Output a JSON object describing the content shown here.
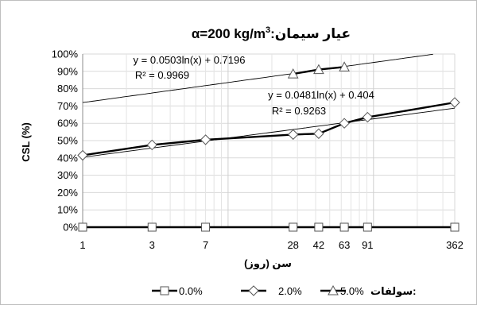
{
  "chart_data": {
    "type": "scatter",
    "title": {
      "prefix": "α=200 kg/m",
      "sup": "3",
      "suffix": ":عیار سیمان"
    },
    "xlabel": "سن (روز)",
    "ylabel": "CSL (%)",
    "x_scale": "log",
    "xlim": [
      1,
      362
    ],
    "ylim": [
      0,
      100
    ],
    "grid": true,
    "x_ticks": [
      1,
      3,
      7,
      28,
      42,
      63,
      91,
      362
    ],
    "x_tick_labels": [
      "1",
      "3",
      "7",
      "28",
      "42",
      "63",
      "91",
      "362"
    ],
    "y_ticks": [
      0,
      10,
      20,
      30,
      40,
      50,
      60,
      70,
      80,
      90,
      100
    ],
    "y_tick_labels": [
      "0%",
      "10%",
      "20%",
      "30%",
      "40%",
      "50%",
      "60%",
      "70%",
      "80%",
      "90%",
      "100%"
    ],
    "legend": {
      "title": "سولفات:",
      "position": "bottom"
    },
    "series": [
      {
        "name": "0.0%",
        "marker": "square",
        "x": [
          1,
          3,
          7,
          28,
          42,
          63,
          91,
          362
        ],
        "y": [
          0,
          0,
          0,
          0,
          0,
          0,
          0,
          0
        ]
      },
      {
        "name": "2.0%",
        "marker": "diamond",
        "x": [
          1,
          3,
          7,
          28,
          42,
          63,
          91,
          362
        ],
        "y": [
          41.5,
          47.5,
          50.5,
          53.5,
          54,
          60,
          63.5,
          72
        ]
      },
      {
        "name": "5.0%",
        "marker": "triangle",
        "x": [
          28,
          42,
          63
        ],
        "y": [
          88.5,
          91,
          92.5
        ]
      }
    ],
    "trendlines": [
      {
        "series": "5.0%",
        "type": "log",
        "a": 0.0503,
        "b": 0.7196,
        "x_range": [
          1,
          362
        ],
        "equation": "y = 0.0503ln(x) + 0.7196",
        "r2": "R² = 0.9969"
      },
      {
        "series": "2.0%",
        "type": "log",
        "a": 0.0481,
        "b": 0.404,
        "x_range": [
          1,
          362
        ],
        "equation": "y = 0.0481ln(x) + 0.404",
        "r2": "R² = 0.9263"
      }
    ]
  }
}
